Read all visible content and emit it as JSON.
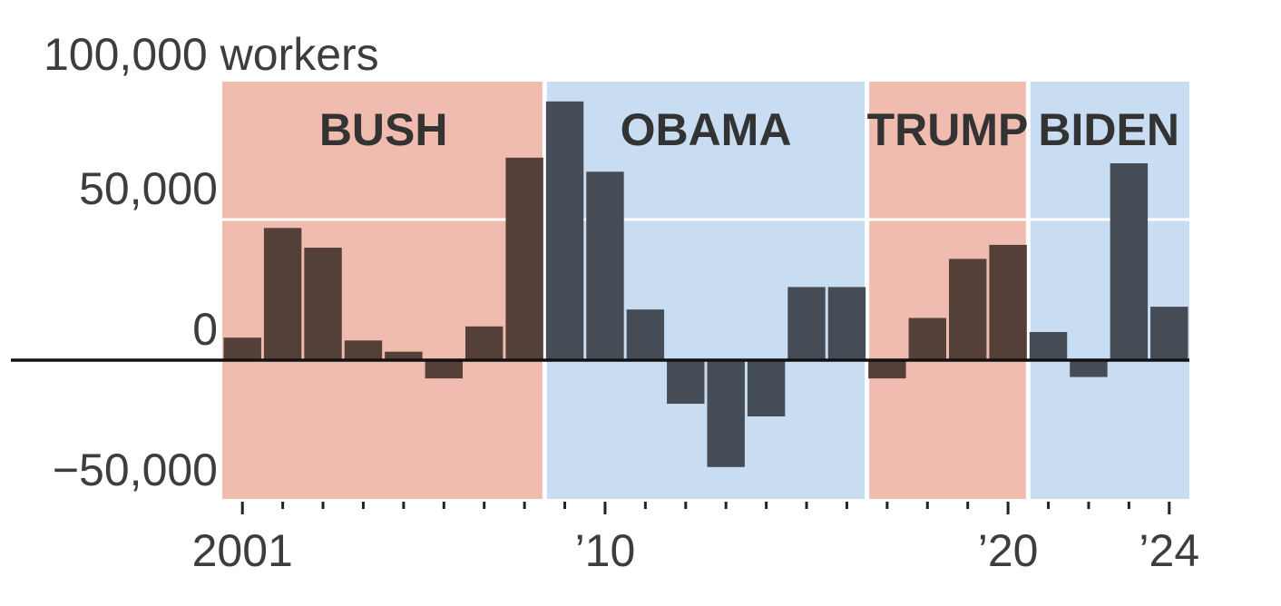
{
  "chart_data": {
    "type": "bar",
    "title": "",
    "ylabel": "100,000 workers",
    "xlabel": "",
    "ylim": [
      -50000,
      100000
    ],
    "y_ticks": [
      {
        "value": 100000,
        "label": "100,000 workers"
      },
      {
        "value": 50000,
        "label": "50,000"
      },
      {
        "value": 0,
        "label": "0"
      },
      {
        "value": -50000,
        "label": "−50,000"
      }
    ],
    "x_tick_labels": [
      {
        "year": 2001,
        "label": "2001"
      },
      {
        "year": 2010,
        "label": "’10"
      },
      {
        "year": 2020,
        "label": "’20"
      },
      {
        "year": 2024,
        "label": "’24"
      }
    ],
    "categories": [
      2001,
      2002,
      2003,
      2004,
      2005,
      2006,
      2007,
      2008,
      2009,
      2010,
      2011,
      2012,
      2013,
      2014,
      2015,
      2016,
      2017,
      2018,
      2019,
      2020,
      2021,
      2022,
      2023,
      2024
    ],
    "values": [
      8000,
      47000,
      40000,
      7000,
      3000,
      -6500,
      12000,
      72000,
      92000,
      67000,
      18000,
      -15500,
      -38000,
      -20000,
      26000,
      26000,
      -6500,
      15000,
      36000,
      41000,
      10000,
      -6000,
      70000,
      19000
    ],
    "presidencies": [
      {
        "name": "BUSH",
        "start": 2000.5,
        "end": 2008.5,
        "color": "#f0bcaf"
      },
      {
        "name": "OBAMA",
        "start": 2008.5,
        "end": 2016.5,
        "color": "#c8dcf2"
      },
      {
        "name": "TRUMP",
        "start": 2016.5,
        "end": 2020.5,
        "color": "#f0bcaf"
      },
      {
        "name": "BIDEN",
        "start": 2020.5,
        "end": 2024.5,
        "color": "#c8dcf2"
      }
    ],
    "party_bar_colors": {
      "republican": "#544039",
      "democrat": "#454c55"
    },
    "grid": true
  }
}
